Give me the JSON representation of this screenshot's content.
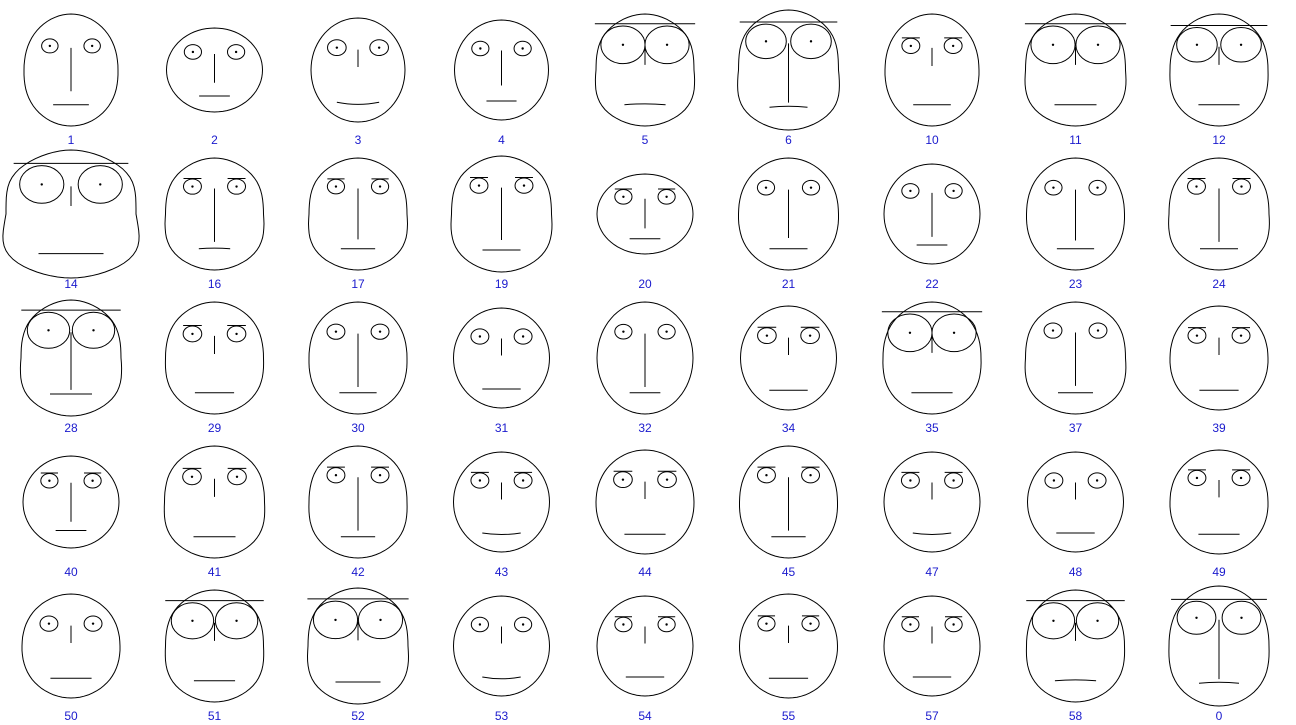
{
  "chart_data": {
    "type": "chernoff-faces",
    "title": "",
    "xlabel": "",
    "ylabel": "",
    "grid": false,
    "layout": {
      "rows": 5,
      "cols": 9
    },
    "colors": {
      "stroke": "#000000",
      "label": "#1a1acd",
      "background": "#ffffff"
    },
    "faces": [
      {
        "label": "1",
        "head_w": 0.47,
        "head_h": 0.56,
        "head_shape": 0.2,
        "eye_size": 0.18,
        "eye_y": 0.3,
        "brow": 0.0,
        "nose_len": 0.7,
        "mouth_w": 0.38,
        "mouth_curve": 0.0
      },
      {
        "label": "2",
        "head_w": 0.48,
        "head_h": 0.42,
        "head_shape": 0.0,
        "eye_size": 0.2,
        "eye_y": 0.3,
        "brow": 0.0,
        "nose_len": 0.55,
        "mouth_w": 0.32,
        "mouth_curve": 0.0
      },
      {
        "label": "3",
        "head_w": 0.47,
        "head_h": 0.52,
        "head_shape": 0.0,
        "eye_size": 0.24,
        "eye_y": 0.3,
        "brow": 0.0,
        "nose_len": 0.2,
        "mouth_w": 0.45,
        "mouth_curve": -0.35
      },
      {
        "label": "4",
        "head_w": 0.47,
        "head_h": 0.5,
        "head_shape": 0.0,
        "eye_size": 0.2,
        "eye_y": 0.3,
        "brow": 0.0,
        "nose_len": 0.6,
        "mouth_w": 0.32,
        "mouth_curve": 0.0
      },
      {
        "label": "5",
        "head_w": 0.49,
        "head_h": 0.56,
        "head_shape": 0.6,
        "eye_size": 0.95,
        "eye_y": 0.25,
        "brow": 1.0,
        "nose_len": 0.2,
        "mouth_w": 0.42,
        "mouth_curve": 0.15
      },
      {
        "label": "6",
        "head_w": 0.5,
        "head_h": 0.6,
        "head_shape": 0.7,
        "eye_size": 0.85,
        "eye_y": 0.18,
        "brow": 1.0,
        "nose_len": 0.95,
        "mouth_w": 0.38,
        "mouth_curve": 0.15
      },
      {
        "label": "10",
        "head_w": 0.47,
        "head_h": 0.56,
        "head_shape": 0.15,
        "eye_size": 0.22,
        "eye_y": 0.3,
        "brow": 0.5,
        "nose_len": 0.2,
        "mouth_w": 0.4,
        "mouth_curve": 0.0
      },
      {
        "label": "11",
        "head_w": 0.5,
        "head_h": 0.56,
        "head_shape": 0.55,
        "eye_size": 0.95,
        "eye_y": 0.25,
        "brow": 1.0,
        "nose_len": 0.2,
        "mouth_w": 0.42,
        "mouth_curve": 0.0
      },
      {
        "label": "12",
        "head_w": 0.49,
        "head_h": 0.56,
        "head_shape": 0.35,
        "eye_size": 0.85,
        "eye_y": 0.25,
        "brow": 1.0,
        "nose_len": 0.2,
        "mouth_w": 0.42,
        "mouth_curve": 0.0
      },
      {
        "label": "14",
        "head_w": 0.65,
        "head_h": 0.64,
        "head_shape": 1.0,
        "eye_size": 0.95,
        "eye_y": 0.22,
        "brow": 1.0,
        "nose_len": 0.2,
        "mouth_w": 0.5,
        "mouth_curve": 0.0
      },
      {
        "label": "16",
        "head_w": 0.49,
        "head_h": 0.56,
        "head_shape": 0.55,
        "eye_size": 0.22,
        "eye_y": 0.15,
        "brow": 0.5,
        "nose_len": 0.9,
        "mouth_w": 0.32,
        "mouth_curve": 0.1
      },
      {
        "label": "17",
        "head_w": 0.49,
        "head_h": 0.56,
        "head_shape": 0.55,
        "eye_size": 0.2,
        "eye_y": 0.15,
        "brow": 0.5,
        "nose_len": 0.85,
        "mouth_w": 0.35,
        "mouth_curve": 0.0
      },
      {
        "label": "19",
        "head_w": 0.5,
        "head_h": 0.58,
        "head_shape": 0.55,
        "eye_size": 0.22,
        "eye_y": 0.15,
        "brow": 0.5,
        "nose_len": 0.85,
        "mouth_w": 0.38,
        "mouth_curve": 0.0
      },
      {
        "label": "20",
        "head_w": 0.48,
        "head_h": 0.4,
        "head_shape": 0.0,
        "eye_size": 0.2,
        "eye_y": 0.3,
        "brow": 0.4,
        "nose_len": 0.6,
        "mouth_w": 0.32,
        "mouth_curve": 0.0
      },
      {
        "label": "21",
        "head_w": 0.5,
        "head_h": 0.56,
        "head_shape": 0.2,
        "eye_size": 0.2,
        "eye_y": 0.2,
        "brow": 0.0,
        "nose_len": 0.8,
        "mouth_w": 0.38,
        "mouth_curve": 0.0
      },
      {
        "label": "22",
        "head_w": 0.48,
        "head_h": 0.5,
        "head_shape": 0.0,
        "eye_size": 0.2,
        "eye_y": 0.22,
        "brow": 0.0,
        "nose_len": 0.8,
        "mouth_w": 0.32,
        "mouth_curve": 0.0
      },
      {
        "label": "23",
        "head_w": 0.49,
        "head_h": 0.56,
        "head_shape": 0.2,
        "eye_size": 0.2,
        "eye_y": 0.2,
        "brow": 0.0,
        "nose_len": 0.85,
        "mouth_w": 0.38,
        "mouth_curve": 0.0
      },
      {
        "label": "24",
        "head_w": 0.5,
        "head_h": 0.56,
        "head_shape": 0.5,
        "eye_size": 0.22,
        "eye_y": 0.15,
        "brow": 0.5,
        "nose_len": 0.9,
        "mouth_w": 0.38,
        "mouth_curve": 0.0
      },
      {
        "label": "28",
        "head_w": 0.5,
        "head_h": 0.58,
        "head_shape": 0.6,
        "eye_size": 0.9,
        "eye_y": 0.18,
        "brow": 1.0,
        "nose_len": 0.95,
        "mouth_w": 0.42,
        "mouth_curve": 0.0
      },
      {
        "label": "29",
        "head_w": 0.49,
        "head_h": 0.56,
        "head_shape": 0.35,
        "eye_size": 0.24,
        "eye_y": 0.3,
        "brow": 0.5,
        "nose_len": 0.2,
        "mouth_w": 0.4,
        "mouth_curve": 0.0
      },
      {
        "label": "30",
        "head_w": 0.49,
        "head_h": 0.56,
        "head_shape": 0.25,
        "eye_size": 0.22,
        "eye_y": 0.2,
        "brow": 0.0,
        "nose_len": 0.9,
        "mouth_w": 0.38,
        "mouth_curve": 0.0
      },
      {
        "label": "31",
        "head_w": 0.48,
        "head_h": 0.5,
        "head_shape": 0.0,
        "eye_size": 0.22,
        "eye_y": 0.3,
        "brow": 0.0,
        "nose_len": 0.2,
        "mouth_w": 0.4,
        "mouth_curve": 0.0
      },
      {
        "label": "32",
        "head_w": 0.48,
        "head_h": 0.56,
        "head_shape": 0.0,
        "eye_size": 0.2,
        "eye_y": 0.2,
        "brow": 0.0,
        "nose_len": 0.9,
        "mouth_w": 0.32,
        "mouth_curve": 0.0
      },
      {
        "label": "34",
        "head_w": 0.48,
        "head_h": 0.52,
        "head_shape": 0.0,
        "eye_size": 0.24,
        "eye_y": 0.3,
        "brow": 0.3,
        "nose_len": 0.2,
        "mouth_w": 0.4,
        "mouth_curve": 0.0
      },
      {
        "label": "35",
        "head_w": 0.49,
        "head_h": 0.56,
        "head_shape": 0.3,
        "eye_size": 0.95,
        "eye_y": 0.25,
        "brow": 1.0,
        "nose_len": 0.2,
        "mouth_w": 0.42,
        "mouth_curve": 0.0
      },
      {
        "label": "37",
        "head_w": 0.5,
        "head_h": 0.56,
        "head_shape": 0.5,
        "eye_size": 0.22,
        "eye_y": 0.15,
        "brow": 0.0,
        "nose_len": 0.9,
        "mouth_w": 0.35,
        "mouth_curve": 0.0
      },
      {
        "label": "39",
        "head_w": 0.49,
        "head_h": 0.52,
        "head_shape": 0.15,
        "eye_size": 0.22,
        "eye_y": 0.3,
        "brow": 0.4,
        "nose_len": 0.2,
        "mouth_w": 0.4,
        "mouth_curve": 0.0
      },
      {
        "label": "40",
        "head_w": 0.48,
        "head_h": 0.46,
        "head_shape": 0.0,
        "eye_size": 0.2,
        "eye_y": 0.22,
        "brow": 0.4,
        "nose_len": 0.75,
        "mouth_w": 0.32,
        "mouth_curve": 0.0
      },
      {
        "label": "41",
        "head_w": 0.5,
        "head_h": 0.56,
        "head_shape": 0.45,
        "eye_size": 0.24,
        "eye_y": 0.25,
        "brow": 0.5,
        "nose_len": 0.2,
        "mouth_w": 0.42,
        "mouth_curve": 0.0
      },
      {
        "label": "42",
        "head_w": 0.49,
        "head_h": 0.56,
        "head_shape": 0.35,
        "eye_size": 0.22,
        "eye_y": 0.18,
        "brow": 0.5,
        "nose_len": 0.9,
        "mouth_w": 0.35,
        "mouth_curve": 0.0
      },
      {
        "label": "43",
        "head_w": 0.48,
        "head_h": 0.5,
        "head_shape": 0.0,
        "eye_size": 0.22,
        "eye_y": 0.3,
        "brow": 0.4,
        "nose_len": 0.2,
        "mouth_w": 0.4,
        "mouth_curve": -0.25
      },
      {
        "label": "44",
        "head_w": 0.49,
        "head_h": 0.52,
        "head_shape": 0.1,
        "eye_size": 0.24,
        "eye_y": 0.3,
        "brow": 0.5,
        "nose_len": 0.2,
        "mouth_w": 0.42,
        "mouth_curve": 0.0
      },
      {
        "label": "45",
        "head_w": 0.49,
        "head_h": 0.56,
        "head_shape": 0.2,
        "eye_size": 0.22,
        "eye_y": 0.18,
        "brow": 0.4,
        "nose_len": 0.9,
        "mouth_w": 0.35,
        "mouth_curve": 0.0
      },
      {
        "label": "47",
        "head_w": 0.48,
        "head_h": 0.5,
        "head_shape": 0.0,
        "eye_size": 0.22,
        "eye_y": 0.3,
        "brow": 0.4,
        "nose_len": 0.2,
        "mouth_w": 0.4,
        "mouth_curve": -0.25
      },
      {
        "label": "48",
        "head_w": 0.48,
        "head_h": 0.5,
        "head_shape": 0.0,
        "eye_size": 0.22,
        "eye_y": 0.3,
        "brow": 0.0,
        "nose_len": 0.2,
        "mouth_w": 0.4,
        "mouth_curve": 0.0
      },
      {
        "label": "49",
        "head_w": 0.49,
        "head_h": 0.52,
        "head_shape": 0.15,
        "eye_size": 0.22,
        "eye_y": 0.22,
        "brow": 0.3,
        "nose_len": 0.2,
        "mouth_w": 0.42,
        "mouth_curve": 0.0
      },
      {
        "label": "50",
        "head_w": 0.49,
        "head_h": 0.52,
        "head_shape": 0.15,
        "eye_size": 0.22,
        "eye_y": 0.3,
        "brow": 0.0,
        "nose_len": 0.2,
        "mouth_w": 0.42,
        "mouth_curve": 0.0
      },
      {
        "label": "51",
        "head_w": 0.49,
        "head_h": 0.56,
        "head_shape": 0.45,
        "eye_size": 0.9,
        "eye_y": 0.25,
        "brow": 1.0,
        "nose_len": 0.2,
        "mouth_w": 0.42,
        "mouth_curve": 0.0
      },
      {
        "label": "52",
        "head_w": 0.5,
        "head_h": 0.58,
        "head_shape": 0.55,
        "eye_size": 0.95,
        "eye_y": 0.25,
        "brow": 1.0,
        "nose_len": 0.2,
        "mouth_w": 0.45,
        "mouth_curve": 0.0
      },
      {
        "label": "53",
        "head_w": 0.48,
        "head_h": 0.5,
        "head_shape": 0.0,
        "eye_size": 0.2,
        "eye_y": 0.3,
        "brow": 0.0,
        "nose_len": 0.2,
        "mouth_w": 0.4,
        "mouth_curve": -0.3
      },
      {
        "label": "54",
        "head_w": 0.48,
        "head_h": 0.5,
        "head_shape": 0.0,
        "eye_size": 0.2,
        "eye_y": 0.3,
        "brow": 0.4,
        "nose_len": 0.2,
        "mouth_w": 0.4,
        "mouth_curve": 0.0
      },
      {
        "label": "55",
        "head_w": 0.49,
        "head_h": 0.52,
        "head_shape": 0.05,
        "eye_size": 0.2,
        "eye_y": 0.3,
        "brow": 0.3,
        "nose_len": 0.2,
        "mouth_w": 0.4,
        "mouth_curve": 0.0
      },
      {
        "label": "57",
        "head_w": 0.48,
        "head_h": 0.5,
        "head_shape": 0.05,
        "eye_size": 0.2,
        "eye_y": 0.3,
        "brow": 0.3,
        "nose_len": 0.2,
        "mouth_w": 0.4,
        "mouth_curve": 0.0
      },
      {
        "label": "58",
        "head_w": 0.49,
        "head_h": 0.56,
        "head_shape": 0.35,
        "eye_size": 0.9,
        "eye_y": 0.25,
        "brow": 1.0,
        "nose_len": 0.2,
        "mouth_w": 0.42,
        "mouth_curve": 0.15
      },
      {
        "label": "0",
        "head_w": 0.5,
        "head_h": 0.6,
        "head_shape": 0.35,
        "eye_size": 0.8,
        "eye_y": 0.2,
        "brow": 1.0,
        "nose_len": 0.95,
        "mouth_w": 0.4,
        "mouth_curve": 0.15
      }
    ]
  }
}
